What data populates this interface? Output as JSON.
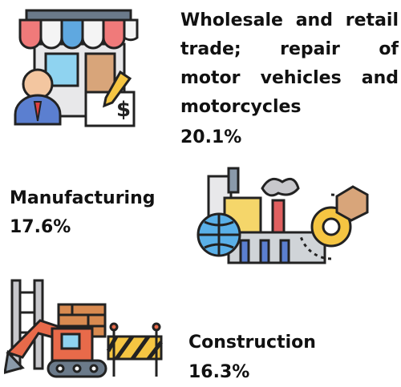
{
  "items": [
    {
      "label": "Wholesale and retail trade; repair of motor vehicles and motorcycles",
      "share": "20.1%"
    },
    {
      "label": "Manufacturing",
      "share": "17.6%"
    },
    {
      "label": "Construction",
      "share": "16.3%"
    }
  ]
}
